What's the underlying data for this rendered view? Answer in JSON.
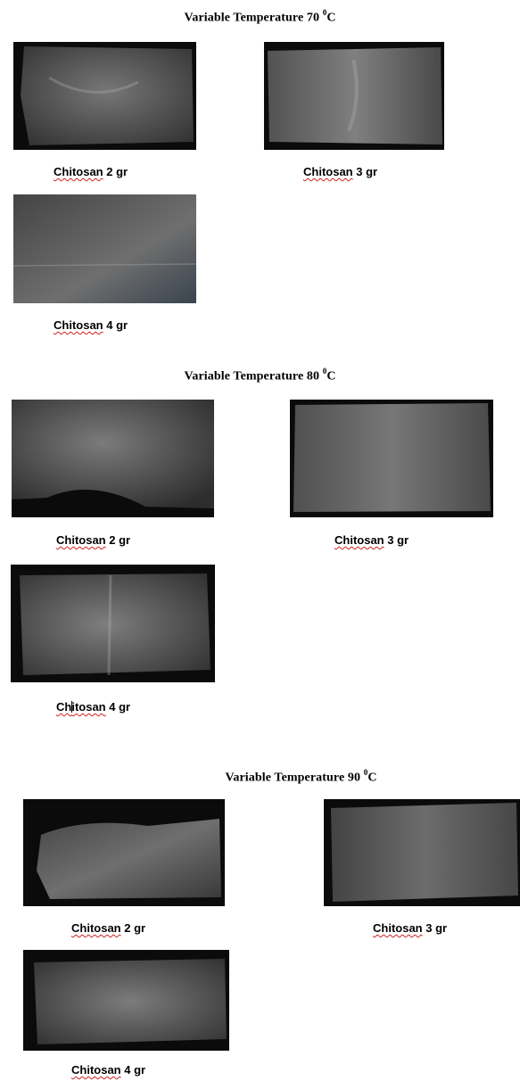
{
  "sections": [
    {
      "title_prefix": "Variable Temperature 70 ",
      "degree_sup": "0",
      "unit": "C",
      "captions": {
        "c2": "Chitosan 2 gr",
        "c3": "Chitosan 3 gr",
        "c4": "Chitosan 4 gr"
      },
      "split": {
        "word": "Chitosan",
        "prefix": "Chi",
        "rest": "tosan",
        "amount": " 4 gr"
      }
    },
    {
      "title_prefix": "Variable Temperature 80 ",
      "degree_sup": "0",
      "unit": "C",
      "captions": {
        "c2": "Chitosan 2 gr",
        "c3": "Chitosan 3 gr",
        "c4": "Chitosan 4 gr"
      },
      "split": {
        "prefix": "Ch",
        "rest": "itosan",
        "amount": " 4 gr"
      }
    },
    {
      "title_prefix": "Variable Temperature 90 ",
      "degree_sup": "0",
      "unit": "C",
      "captions": {
        "c2": "Chitosan 2 gr",
        "c3": "Chitosan 3 gr",
        "c4": "Chitosan 4 gr"
      },
      "split": {
        "amount": " 4 gr"
      }
    }
  ],
  "words": {
    "chitosan": "Chitosan",
    "amt2": " 2 gr",
    "amt3": " 3 gr",
    "amt4": " 4 gr"
  },
  "colors": {
    "photo_bg": "#0b0b0b",
    "film": "#6e6e6e",
    "spellcheck": "#d02020"
  }
}
